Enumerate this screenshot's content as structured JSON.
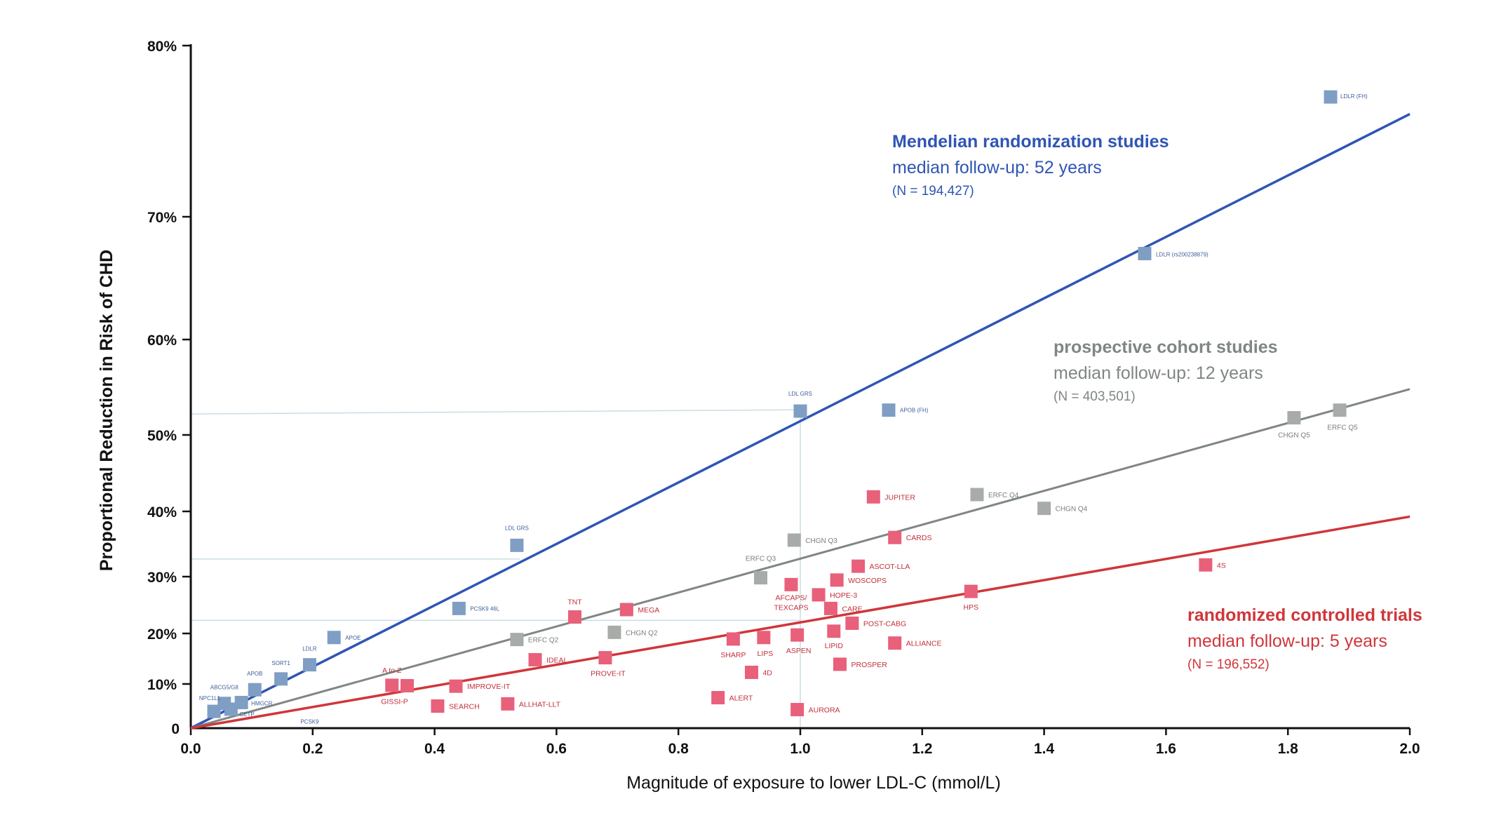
{
  "chart_data": {
    "type": "scatter",
    "title": "",
    "xlabel": "Magnitude of exposure to lower LDL-C (mmol/L)",
    "ylabel": "Proportional Reduction in Risk of CHD",
    "xlim": [
      0,
      2.0
    ],
    "ylim": [
      0,
      80
    ],
    "y_scale": "log-risk",
    "x_ticks": [
      {
        "v": 0.0,
        "label": "0.0"
      },
      {
        "v": 0.2,
        "label": "0.2"
      },
      {
        "v": 0.4,
        "label": "0.4"
      },
      {
        "v": 0.6,
        "label": "0.6"
      },
      {
        "v": 0.8,
        "label": "0.8"
      },
      {
        "v": 1.0,
        "label": "1.0"
      },
      {
        "v": 1.2,
        "label": "1.2"
      },
      {
        "v": 1.4,
        "label": "1.4"
      },
      {
        "v": 1.6,
        "label": "1.6"
      },
      {
        "v": 1.8,
        "label": "1.8"
      },
      {
        "v": 2.0,
        "label": "2.0"
      }
    ],
    "y_ticks": [
      {
        "v": 0,
        "label": "0"
      },
      {
        "v": 10,
        "label": "10%"
      },
      {
        "v": 20,
        "label": "20%"
      },
      {
        "v": 30,
        "label": "30%"
      },
      {
        "v": 40,
        "label": "40%"
      },
      {
        "v": 50,
        "label": "50%"
      },
      {
        "v": 60,
        "label": "60%"
      },
      {
        "v": 70,
        "label": "70%"
      },
      {
        "v": 80,
        "label": "80%"
      }
    ],
    "reference_lines": [
      {
        "x": 1.0,
        "y": 52.2
      },
      {
        "x": 0.54,
        "y": 32.7
      },
      {
        "x": 1.0,
        "y": 22.3
      }
    ],
    "series": [
      {
        "name": "Mendelian randomization studies",
        "follow_up": "median follow-up: 52 years",
        "n": "(N = 194,427)",
        "color": "#2f55b5",
        "marker_color": "#7f9ec4",
        "trend_line": {
          "x": [
            0,
            2.0
          ],
          "y": [
            0,
            76
          ]
        },
        "points": [
          {
            "label": "LDLR (FH)",
            "x": 1.87,
            "y": 77.0
          },
          {
            "label": "LDLR (rs200238879)",
            "x": 1.565,
            "y": 67.0
          },
          {
            "label": "LDL GRS",
            "x": 1.0,
            "y": 52.5
          },
          {
            "label": "APOB (FH)",
            "x": 1.145,
            "y": 52.6
          },
          {
            "label": "LDL GRS",
            "x": 0.535,
            "y": 34.8
          },
          {
            "label": "PCSK9 46L",
            "x": 0.44,
            "y": 24.4
          },
          {
            "label": "APOE",
            "x": 0.235,
            "y": 19.2
          },
          {
            "label": "LDLR",
            "x": 0.195,
            "y": 13.8
          },
          {
            "label": "SORT1",
            "x": 0.148,
            "y": 11.0
          },
          {
            "label": "APOB",
            "x": 0.105,
            "y": 8.7
          },
          {
            "label": "ABCG5/G8",
            "x": 0.055,
            "y": 5.6
          },
          {
            "label": "HMGCR",
            "x": 0.083,
            "y": 5.8
          },
          {
            "label": "NPC1L1",
            "x": 0.038,
            "y": 3.8
          },
          {
            "label": "CETP",
            "x": 0.066,
            "y": 4.3
          },
          {
            "label": "PCSK9",
            "x": 0.195,
            "y": 1.7
          }
        ]
      },
      {
        "name": "prospective cohort studies",
        "follow_up": "median follow-up: 12 years",
        "n": "(N = 403,501)",
        "color": "#7f8683",
        "marker_color": "#a7aca9",
        "trend_line": {
          "x": [
            0,
            2.0
          ],
          "y": [
            0,
            54.8
          ]
        },
        "points": [
          {
            "label": "CHGN Q5",
            "x": 1.81,
            "y": 51.8
          },
          {
            "label": "ERFC Q5",
            "x": 1.885,
            "y": 52.6
          },
          {
            "label": "ERFC Q4",
            "x": 1.29,
            "y": 42.2
          },
          {
            "label": "CHGN Q4",
            "x": 1.4,
            "y": 40.4
          },
          {
            "label": "CHGN Q3",
            "x": 0.99,
            "y": 35.6
          },
          {
            "label": "ERFC Q3",
            "x": 0.935,
            "y": 29.8
          },
          {
            "label": "CHGN Q2",
            "x": 0.695,
            "y": 20.2
          },
          {
            "label": "ERFC Q2",
            "x": 0.535,
            "y": 18.8
          }
        ]
      },
      {
        "name": "randomized controlled trials",
        "follow_up": "median follow-up: 5 years",
        "n": "(N = 196,552)",
        "color": "#d0363a",
        "marker_color": "#e8607a",
        "trend_line": {
          "x": [
            0,
            2.0
          ],
          "y": [
            0,
            39.2
          ]
        },
        "points": [
          {
            "label": "4S",
            "x": 1.665,
            "y": 31.8
          },
          {
            "label": "JUPITER",
            "x": 1.12,
            "y": 41.9
          },
          {
            "label": "CARDS",
            "x": 1.155,
            "y": 36.0
          },
          {
            "label": "ASCOT-LLA",
            "x": 1.095,
            "y": 31.6
          },
          {
            "label": "WOSCOPS",
            "x": 1.06,
            "y": 29.4
          },
          {
            "label": "AFCAPS/TEXCAPS",
            "x": 0.985,
            "y": 28.6
          },
          {
            "label": "HOPE-3",
            "x": 1.03,
            "y": 26.8
          },
          {
            "label": "CARE",
            "x": 1.05,
            "y": 24.4
          },
          {
            "label": "POST-CABG",
            "x": 1.085,
            "y": 21.8
          },
          {
            "label": "LIPID",
            "x": 1.055,
            "y": 20.4
          },
          {
            "label": "ALLIANCE",
            "x": 1.155,
            "y": 18.1
          },
          {
            "label": "PROSPER",
            "x": 1.065,
            "y": 13.9
          },
          {
            "label": "HPS",
            "x": 1.28,
            "y": 27.4
          },
          {
            "label": "ASPEN",
            "x": 0.995,
            "y": 19.7
          },
          {
            "label": "LIPS",
            "x": 0.94,
            "y": 19.2
          },
          {
            "label": "SHARP",
            "x": 0.89,
            "y": 18.9
          },
          {
            "label": "4D",
            "x": 0.92,
            "y": 12.3
          },
          {
            "label": "ALERT",
            "x": 0.865,
            "y": 6.9
          },
          {
            "label": "AURORA",
            "x": 0.995,
            "y": 4.2
          },
          {
            "label": "MEGA",
            "x": 0.715,
            "y": 24.2
          },
          {
            "label": "TNT",
            "x": 0.63,
            "y": 22.9
          },
          {
            "label": "PROVE-IT",
            "x": 0.68,
            "y": 15.2
          },
          {
            "label": "IDEAL",
            "x": 0.565,
            "y": 14.8
          },
          {
            "label": "IMPROVE-IT",
            "x": 0.435,
            "y": 9.5
          },
          {
            "label": "ALLHAT-LLT",
            "x": 0.52,
            "y": 5.5
          },
          {
            "label": "A to Z",
            "x": 0.33,
            "y": 9.7
          },
          {
            "label": "GISSI-P",
            "x": 0.355,
            "y": 9.6
          },
          {
            "label": "SEARCH",
            "x": 0.405,
            "y": 5.0
          }
        ]
      }
    ]
  }
}
